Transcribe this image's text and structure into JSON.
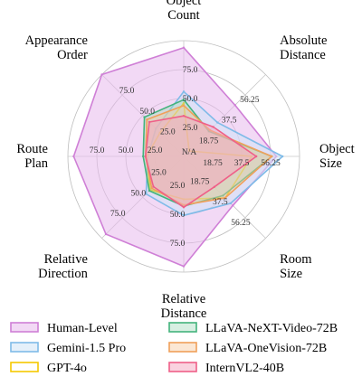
{
  "chart_data": {
    "type": "radar",
    "axes": [
      {
        "name": "Object Count",
        "lines": [
          "Object",
          "Count"
        ],
        "max": 100
      },
      {
        "name": "Absolute Distance",
        "lines": [
          "Absolute",
          "Distance"
        ],
        "max": 75
      },
      {
        "name": "Object Size",
        "lines": [
          "Object",
          "Size"
        ],
        "max": 75
      },
      {
        "name": "Room Size",
        "lines": [
          "Room",
          "Size"
        ],
        "max": 75
      },
      {
        "name": "Relative Distance",
        "lines": [
          "Relative",
          "Distance"
        ],
        "max": 100
      },
      {
        "name": "Relative Direction",
        "lines": [
          "Relative",
          "Direction"
        ],
        "max": 100
      },
      {
        "name": "Route Plan",
        "lines": [
          "Route",
          "Plan"
        ],
        "max": 100
      },
      {
        "name": "Appearance Order",
        "lines": [
          "Appearance",
          "Order"
        ],
        "max": 100
      }
    ],
    "axis_ticks": [
      {
        "values": [
          25.0,
          50.0,
          75.0
        ],
        "labels": [
          "25.0",
          "50.0",
          "75.0"
        ]
      },
      {
        "values": [
          18.75,
          37.5,
          56.25
        ],
        "labels": [
          "18.75",
          "37.5",
          "56.25"
        ]
      },
      {
        "values": [
          18.75,
          37.5,
          56.25
        ],
        "labels": [
          "18.75",
          "37.5",
          "56.25"
        ]
      },
      {
        "values": [
          18.75,
          37.5,
          56.25
        ],
        "labels": [
          "18.75",
          "37.5",
          "56.25"
        ]
      },
      {
        "values": [
          25.0,
          50.0,
          75.0
        ],
        "labels": [
          "25.0",
          "50.0",
          "75.0"
        ]
      },
      {
        "values": [
          25.0,
          50.0,
          75.0
        ],
        "labels": [
          "25.0",
          "50.0",
          "75.0"
        ]
      },
      {
        "values": [
          25.0,
          50.0,
          75.0
        ],
        "labels": [
          "25.0",
          "50.0",
          "75.0"
        ]
      },
      {
        "values": [
          25.0,
          50.0,
          75.0
        ],
        "labels": [
          "25.0",
          "50.0",
          "75.0"
        ]
      }
    ],
    "center_label": "N/A",
    "series": [
      {
        "name": "Human-Level",
        "color": "#cf7fd6",
        "fill": "#e7b9ec",
        "fill_opacity": 0.55,
        "values": [
          94,
          47,
          60,
          45,
          95,
          95,
          95,
          100
        ]
      },
      {
        "name": "Gemini-1.5 Pro",
        "color": "#7fbbe8",
        "fill": "#cfe3f6",
        "fill_opacity": 0.55,
        "values": [
          56,
          31,
          64,
          43,
          51,
          46,
          31,
          34
        ]
      },
      {
        "name": "GPT-4o",
        "color": "#f5c800",
        "fill": "#f5c800",
        "fill_opacity": 0.0,
        "values": [
          46,
          5,
          44,
          38,
          37,
          41,
          32,
          29
        ]
      },
      {
        "name": "LLaVA-NeXT-Video-72B",
        "color": "#43b37c",
        "fill": "#a6dcbf",
        "fill_opacity": 0.45,
        "values": [
          49,
          23,
          57,
          36,
          43,
          42,
          35,
          48
        ]
      },
      {
        "name": "LLaVA-OneVision-72B",
        "color": "#f0a05a",
        "fill": "#f6c9a0",
        "fill_opacity": 0.45,
        "values": [
          44,
          24,
          57,
          38,
          42,
          39,
          33,
          45
        ]
      },
      {
        "name": "InternVL2-40B",
        "color": "#ef5f88",
        "fill": "#f6a6bf",
        "fill_opacity": 0.5,
        "values": [
          35,
          27,
          47,
          28,
          44,
          37,
          33,
          42
        ]
      }
    ]
  }
}
